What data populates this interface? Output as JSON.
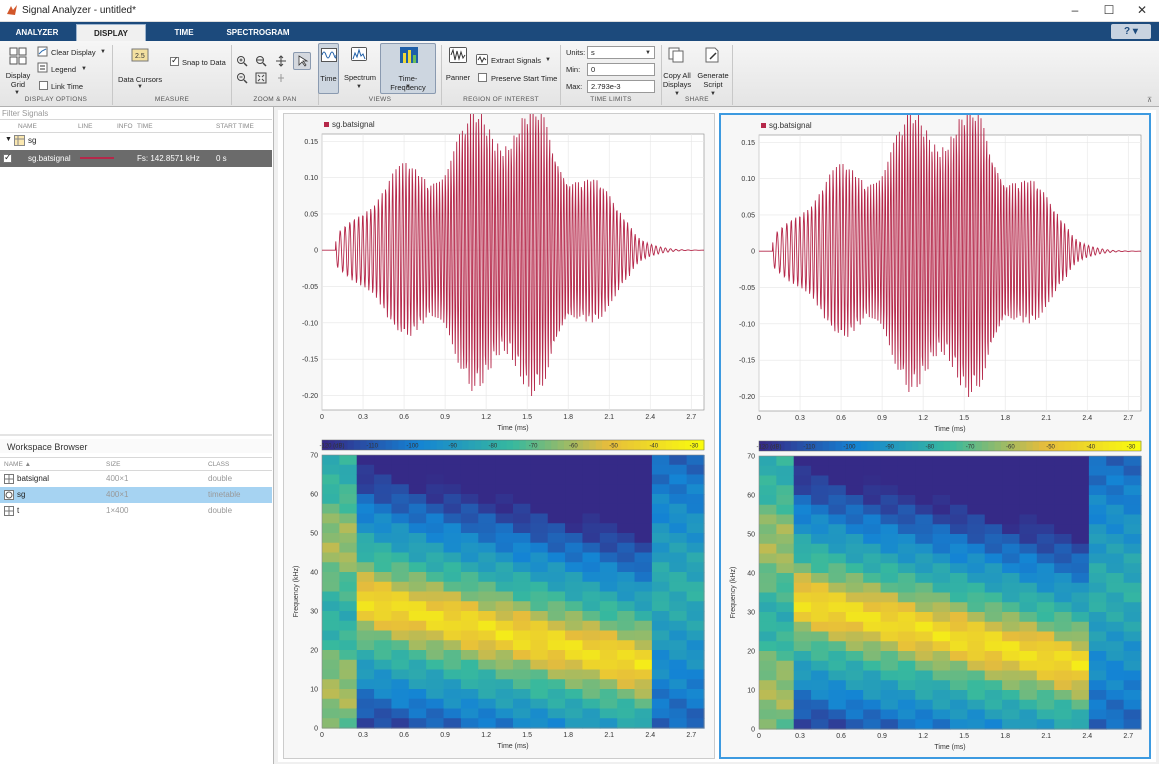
{
  "window": {
    "title": "Signal Analyzer - untitled*",
    "min": "–",
    "max": "☐",
    "close": "✕"
  },
  "tabs": [
    "ANALYZER",
    "DISPLAY",
    "TIME",
    "SPECTROGRAM"
  ],
  "help": "? ▾",
  "toolstrip": {
    "display_options": {
      "display_grid": "Display\nGrid",
      "clear_display": "Clear Display",
      "legend": "Legend",
      "link_time": "Link Time",
      "section": "DISPLAY OPTIONS"
    },
    "measure": {
      "data_cursors": "Data Cursors",
      "snap_to_data": "Snap to Data",
      "section": "MEASURE"
    },
    "zoom_pan": {
      "section": "ZOOM & PAN"
    },
    "views": {
      "time": "Time",
      "spectrum": "Spectrum",
      "time_frequency": "Time-Frequency",
      "section": "VIEWS"
    },
    "roi": {
      "panner": "Panner",
      "extract_signals": "Extract Signals",
      "preserve_start_time": "Preserve Start Time",
      "section": "REGION OF INTEREST"
    },
    "time_limits": {
      "units_label": "Units:",
      "units_value": "s",
      "min_label": "Min:",
      "min_value": "0",
      "max_label": "Max:",
      "max_value": "2.793e-3",
      "section": "TIME LIMITS"
    },
    "share": {
      "copy_all": "Copy All\nDisplays",
      "generate_script": "Generate\nScript",
      "section": "SHARE"
    }
  },
  "signals": {
    "filter_placeholder": "Filter Signals",
    "headers": [
      "NAME",
      "LINE",
      "INFO",
      "TIME",
      "START TIME"
    ],
    "group": "sg",
    "row": {
      "name": "sg.batsignal",
      "time": "Fs: 142.8571 kHz",
      "start": "0 s"
    }
  },
  "workspace": {
    "title": "Workspace Browser",
    "headers": [
      "NAME ▲",
      "SIZE",
      "CLASS"
    ],
    "rows": [
      {
        "name": "batsignal",
        "size": "400×1",
        "class": "double"
      },
      {
        "name": "sg",
        "size": "400×1",
        "class": "timetable"
      },
      {
        "name": "t",
        "size": "1×400",
        "class": "double"
      }
    ]
  },
  "chart_data": [
    {
      "type": "line",
      "legend": "sg.batsignal",
      "xlabel": "Time (ms)",
      "xlim": [
        0,
        2.793
      ],
      "ylim": [
        -0.22,
        0.16
      ],
      "xticks": [
        "0",
        "0.3",
        "0.6",
        "0.9",
        "1.2",
        "1.5",
        "1.8",
        "2.1",
        "2.4",
        "2.7"
      ],
      "yticks": [
        "0.15",
        "0.10",
        "0.05",
        "0",
        "-0.05",
        "-0.10",
        "-0.15",
        "-0.20"
      ],
      "color": "#b5284a"
    },
    {
      "type": "heatmap",
      "xlabel": "Time (ms)",
      "ylabel": "Frequency (kHz)",
      "xticks": [
        "0",
        "0.3",
        "0.6",
        "0.9",
        "1.2",
        "1.5",
        "1.8",
        "2.1",
        "2.4",
        "2.7"
      ],
      "yticks": [
        "70",
        "60",
        "50",
        "40",
        "30",
        "20",
        "10",
        "0"
      ],
      "colorbar_ticks": [
        "-120 (dB)",
        "-110",
        "-100",
        "-90",
        "-80",
        "-70",
        "-60",
        "-50",
        "-40",
        "-30"
      ]
    }
  ]
}
